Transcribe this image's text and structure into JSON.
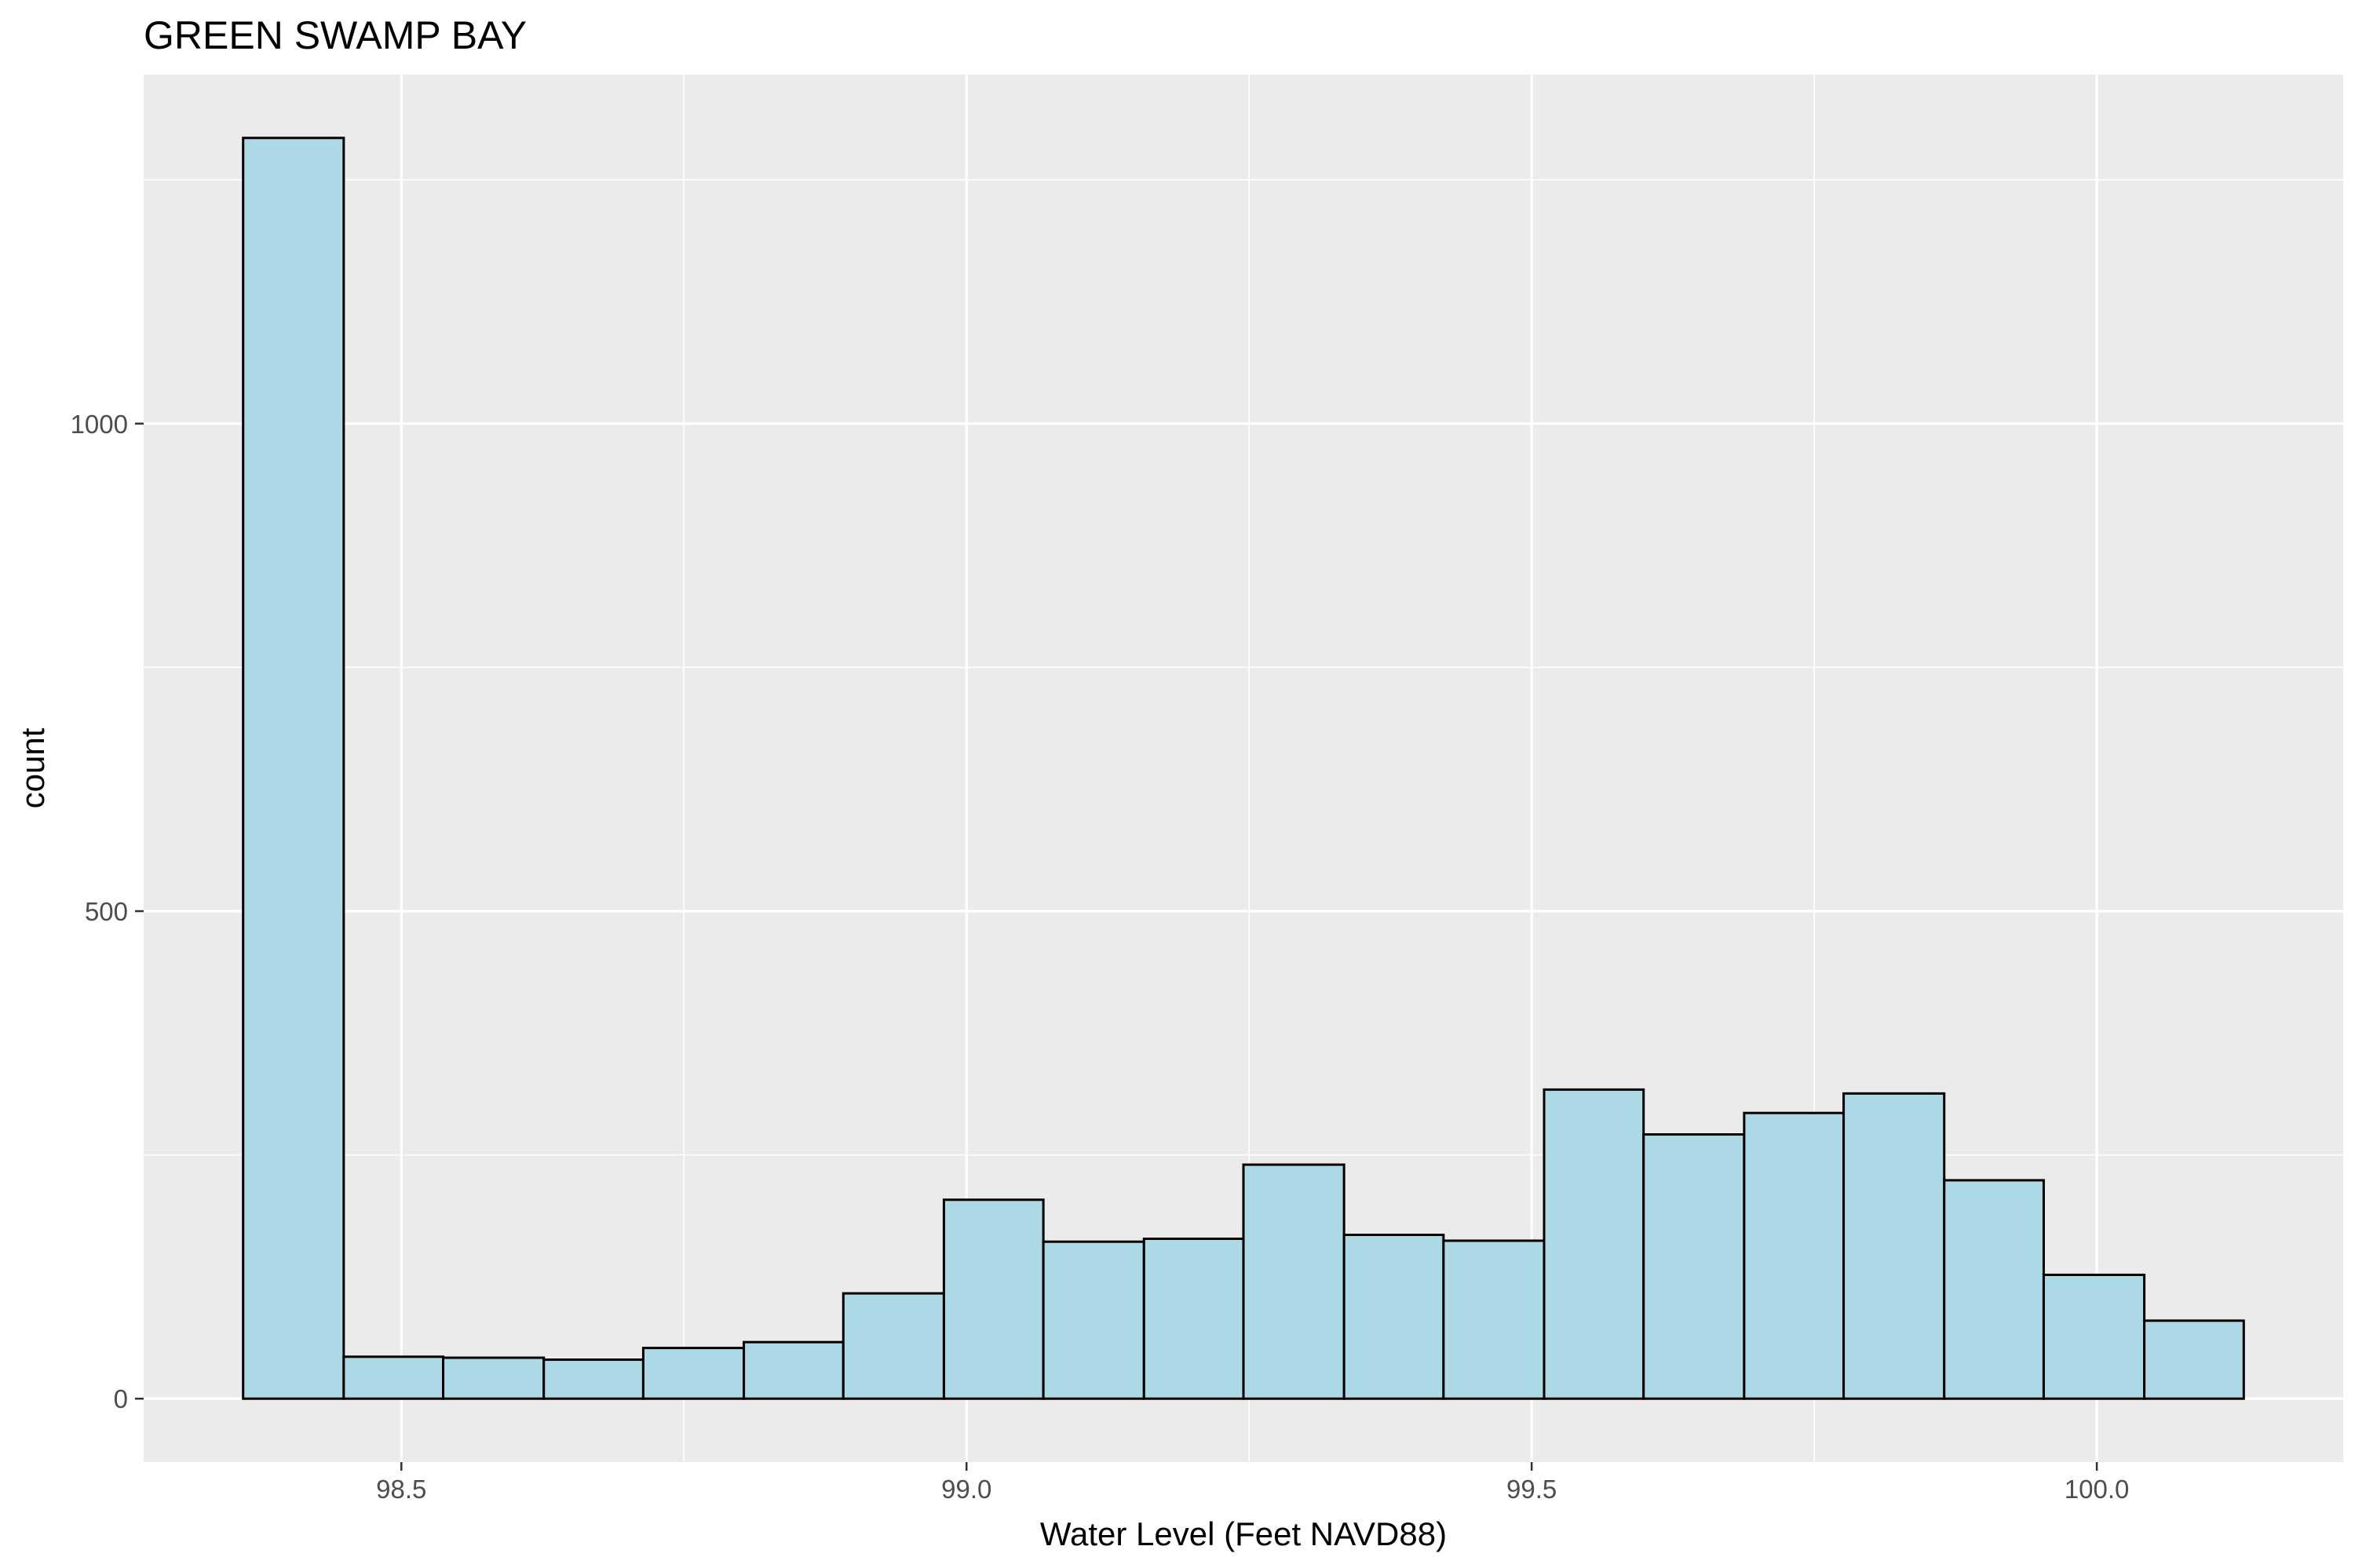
{
  "chart_data": {
    "type": "bar",
    "title": "GREEN SWAMP BAY",
    "xlabel": "Water Level (Feet NAVD88)",
    "ylabel": "count",
    "bin_width": 0.0885,
    "bins": [
      {
        "start": 98.36,
        "end": 98.449,
        "count": 1293
      },
      {
        "start": 98.449,
        "end": 98.537,
        "count": 43
      },
      {
        "start": 98.537,
        "end": 98.626,
        "count": 42
      },
      {
        "start": 98.626,
        "end": 98.714,
        "count": 40
      },
      {
        "start": 98.714,
        "end": 98.803,
        "count": 52
      },
      {
        "start": 98.803,
        "end": 98.891,
        "count": 58
      },
      {
        "start": 98.891,
        "end": 98.98,
        "count": 108
      },
      {
        "start": 98.98,
        "end": 99.068,
        "count": 204
      },
      {
        "start": 99.068,
        "end": 99.157,
        "count": 161
      },
      {
        "start": 99.157,
        "end": 99.245,
        "count": 164
      },
      {
        "start": 99.245,
        "end": 99.334,
        "count": 240
      },
      {
        "start": 99.334,
        "end": 99.422,
        "count": 168
      },
      {
        "start": 99.422,
        "end": 99.511,
        "count": 162
      },
      {
        "start": 99.511,
        "end": 99.599,
        "count": 317
      },
      {
        "start": 99.599,
        "end": 99.688,
        "count": 271
      },
      {
        "start": 99.688,
        "end": 99.776,
        "count": 293
      },
      {
        "start": 99.776,
        "end": 99.865,
        "count": 313
      },
      {
        "start": 99.865,
        "end": 99.953,
        "count": 224
      },
      {
        "start": 99.953,
        "end": 100.042,
        "count": 127
      },
      {
        "start": 100.042,
        "end": 100.13,
        "count": 80
      }
    ],
    "xlim": [
      98.272,
      100.218
    ],
    "ylim": [
      -65,
      1358
    ],
    "x_ticks": [
      98.5,
      99.0,
      99.5,
      100.0
    ],
    "x_tick_labels": [
      "98.5",
      "99.0",
      "99.5",
      "100.0"
    ],
    "y_ticks": [
      0,
      500,
      1000
    ],
    "y_tick_labels": [
      "0",
      "500",
      "1000"
    ],
    "grid": true,
    "colors": {
      "panel_background": "#ebebeb",
      "grid_major": "#ffffff",
      "bar_fill": "#add8e6",
      "bar_outline": "#000000",
      "tick_color": "#333333",
      "tick_label": "#4d4d4d"
    }
  }
}
